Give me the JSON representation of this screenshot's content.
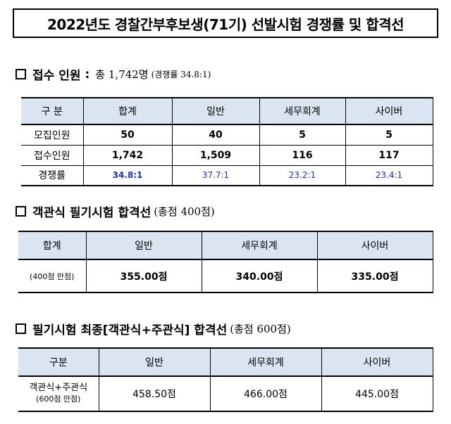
{
  "title": "2022년도 경찰간부후보생(71기) 선발시험 경쟁률 및 합격선",
  "section1": {
    "heading": "접수 인원",
    "colon": ":",
    "total": "총 1,742명",
    "ratio": "(경쟁률 34.8:1)",
    "header": [
      "구    분",
      "합계",
      "일반",
      "세무회계",
      "사이버"
    ],
    "rows": [
      {
        "label": "모집인원",
        "values": [
          "50",
          "40",
          "5",
          "5"
        ]
      },
      {
        "label": "접수인원",
        "values": [
          "1,742",
          "1,509",
          "116",
          "117"
        ]
      },
      {
        "label": "경쟁률",
        "values": [
          "34.8:1",
          "37.7:1",
          "23.2:1",
          "23.4:1"
        ]
      }
    ]
  },
  "section2": {
    "heading": "객관식 필기시험 합격선",
    "note": "(총점 400점)",
    "header": [
      "합계",
      "일반",
      "세무회계",
      "사이버"
    ],
    "row_label": "(400점 만점)",
    "values": [
      "355.00점",
      "340.00점",
      "335.00점"
    ]
  },
  "section3": {
    "heading": "필기시험 최종[객관식+주관식] 합격선",
    "note": "(총점 600점)",
    "header": [
      "구분",
      "일반",
      "세무회계",
      "사이버"
    ],
    "row_label_line1": "객관식+주관식",
    "row_label_line2": "(600점 만점)",
    "values": [
      "458.50점",
      "466.00점",
      "445.00점"
    ]
  }
}
